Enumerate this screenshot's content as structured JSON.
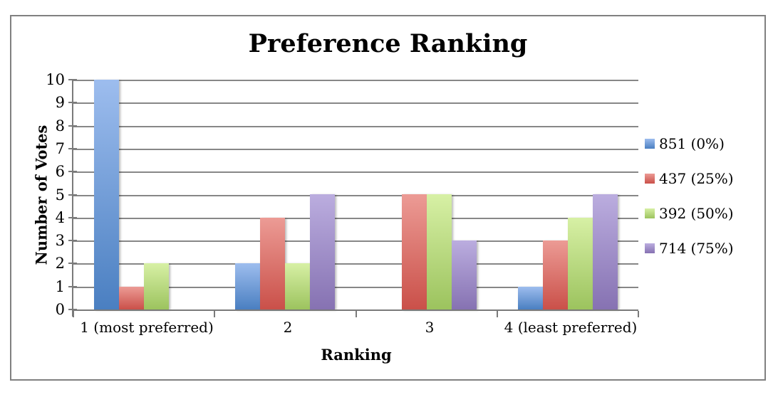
{
  "window": {
    "background_color": "#ffffff",
    "frame_border_color": "#808080",
    "gridline_color": "#878787",
    "axis_color": "#7a7a7a"
  },
  "chart_data": {
    "type": "bar",
    "title": "Preference Ranking",
    "xlabel": "Ranking",
    "ylabel": "Number of Votes",
    "categories": [
      "1 (most preferred)",
      "2",
      "3",
      "4 (least preferred)"
    ],
    "series": [
      {
        "name": "851 (0%)",
        "values": [
          10,
          2,
          0,
          1
        ],
        "color_top": "#9dbdee",
        "color_bottom": "#4a7fc1"
      },
      {
        "name": "437 (25%)",
        "values": [
          1,
          4,
          5,
          3
        ],
        "color_top": "#ec9b95",
        "color_bottom": "#ca5049"
      },
      {
        "name": "392 (50%)",
        "values": [
          2,
          2,
          5,
          4
        ],
        "color_top": "#d7f0a5",
        "color_bottom": "#9cc35e"
      },
      {
        "name": "714 (75%)",
        "values": [
          0,
          5,
          3,
          5
        ],
        "color_top": "#bbaddf",
        "color_bottom": "#8672b2"
      }
    ],
    "ylim": [
      0,
      10
    ],
    "yticks": [
      0,
      1,
      2,
      3,
      4,
      5,
      6,
      7,
      8,
      9,
      10
    ],
    "grid": true,
    "legend_position": "right",
    "legend_labels": [
      "851 (0%)",
      "437 (25%)",
      "392 (50%)",
      "714 (75%)"
    ]
  }
}
